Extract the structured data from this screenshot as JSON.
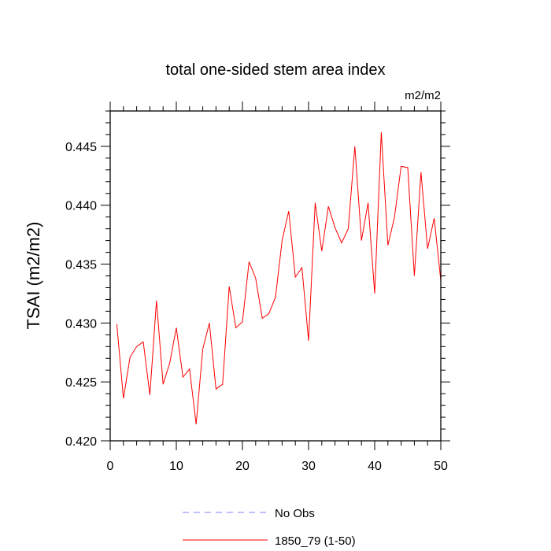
{
  "chart_data": {
    "type": "line",
    "title": "total one-sided stem area index",
    "units": "m2/m2",
    "xlabel": "",
    "ylabel": "TSAI  (m2/m2)",
    "xlim": [
      0,
      50
    ],
    "ylim": [
      0.42,
      0.448
    ],
    "xticks": [
      0,
      10,
      20,
      30,
      40,
      50
    ],
    "xtick_labels": [
      "0",
      "10",
      "20",
      "30",
      "40",
      "50"
    ],
    "yticks": [
      0.42,
      0.425,
      0.43,
      0.435,
      0.44,
      0.445
    ],
    "ytick_labels": [
      "0.420",
      "0.425",
      "0.430",
      "0.435",
      "0.440",
      "0.445"
    ],
    "grid": false,
    "legend_position": "bottom",
    "series": [
      {
        "name": "No Obs",
        "color": "#8080ff",
        "style": "dashed",
        "x": [],
        "values": []
      },
      {
        "name": "1850_79 (1-50)",
        "color": "#ff0000",
        "style": "solid",
        "x": [
          1,
          2,
          3,
          4,
          5,
          6,
          7,
          8,
          9,
          10,
          11,
          12,
          13,
          14,
          15,
          16,
          17,
          18,
          19,
          20,
          21,
          22,
          23,
          24,
          25,
          26,
          27,
          28,
          29,
          30,
          31,
          32,
          33,
          34,
          35,
          36,
          37,
          38,
          39,
          40,
          41,
          42,
          43,
          44,
          45,
          46,
          47,
          48,
          49,
          50
        ],
        "values": [
          0.4299,
          0.4236,
          0.4271,
          0.428,
          0.4284,
          0.4239,
          0.4319,
          0.4248,
          0.4266,
          0.4296,
          0.4254,
          0.4261,
          0.4214,
          0.4278,
          0.43,
          0.4244,
          0.4248,
          0.4331,
          0.4296,
          0.4301,
          0.4352,
          0.4338,
          0.4304,
          0.4308,
          0.4322,
          0.437,
          0.4395,
          0.4339,
          0.4347,
          0.4285,
          0.4402,
          0.4361,
          0.4399,
          0.4381,
          0.4368,
          0.438,
          0.445,
          0.437,
          0.4402,
          0.4325,
          0.4462,
          0.4366,
          0.439,
          0.4433,
          0.4432,
          0.434,
          0.4428,
          0.4363,
          0.4389,
          0.4336
        ]
      }
    ]
  }
}
